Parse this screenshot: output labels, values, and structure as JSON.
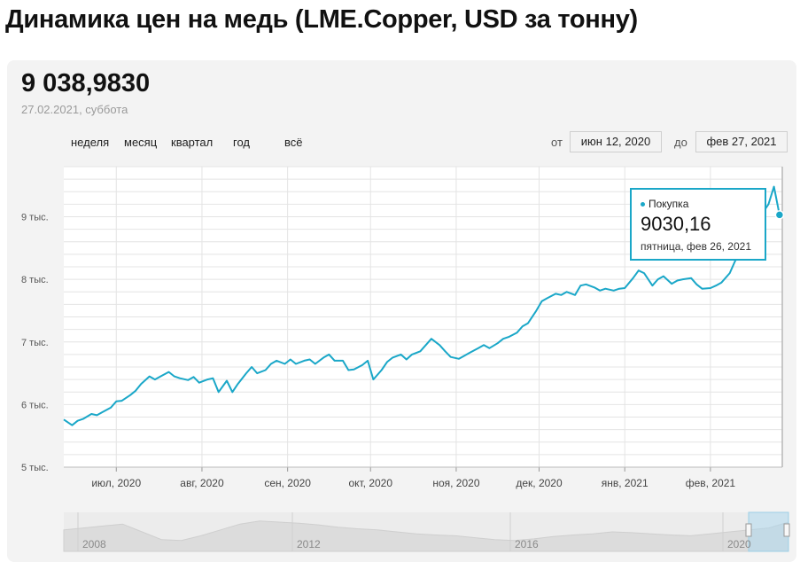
{
  "page": {
    "title": "Динамика цен на медь (LME.Copper, USD за тонну)"
  },
  "summary": {
    "price": "9 038,9830",
    "date": "27.02.2021, суббота"
  },
  "periods": [
    "неделя",
    "месяц",
    "квартал",
    "год",
    "всё"
  ],
  "range": {
    "from_label": "от",
    "from_value": "июн 12, 2020",
    "to_label": "до",
    "to_value": "фев 27, 2021"
  },
  "tooltip": {
    "series_name": "Покупка",
    "value": "9030,16",
    "date": "пятница, фев 26, 2021"
  },
  "colors": {
    "line": "#1aa7c8",
    "card_background": "#f3f3f3",
    "grid": "#e4e4e4"
  },
  "navigator": {
    "labels": [
      "2008",
      "2012",
      "2016",
      "2020"
    ]
  },
  "chart_data": {
    "type": "line",
    "title": "Динамика цен на медь (LME.Copper, USD за тонну)",
    "xlabel": "",
    "ylabel": "",
    "grid": true,
    "x_range": [
      "2020-06-12",
      "2021-02-27"
    ],
    "ylim": [
      5000,
      9800
    ],
    "y_ticks": [
      {
        "value": 5000,
        "label": "5 тыс."
      },
      {
        "value": 6000,
        "label": "6 тыс."
      },
      {
        "value": 7000,
        "label": "7 тыс."
      },
      {
        "value": 8000,
        "label": "8 тыс."
      },
      {
        "value": 9000,
        "label": "9 тыс."
      }
    ],
    "x_ticks": [
      {
        "date": "2020-07-01",
        "label": "июл, 2020"
      },
      {
        "date": "2020-08-01",
        "label": "авг, 2020"
      },
      {
        "date": "2020-09-01",
        "label": "сен, 2020"
      },
      {
        "date": "2020-10-01",
        "label": "окт, 2020"
      },
      {
        "date": "2020-11-01",
        "label": "ноя, 2020"
      },
      {
        "date": "2020-12-01",
        "label": "дек, 2020"
      },
      {
        "date": "2021-01-01",
        "label": "янв, 2021"
      },
      {
        "date": "2021-02-01",
        "label": "фев, 2021"
      }
    ],
    "series": [
      {
        "name": "Покупка",
        "points": [
          [
            "2020-06-12",
            5760
          ],
          [
            "2020-06-15",
            5670
          ],
          [
            "2020-06-17",
            5740
          ],
          [
            "2020-06-19",
            5770
          ],
          [
            "2020-06-22",
            5850
          ],
          [
            "2020-06-24",
            5830
          ],
          [
            "2020-06-26",
            5880
          ],
          [
            "2020-06-29",
            5950
          ],
          [
            "2020-07-01",
            6050
          ],
          [
            "2020-07-03",
            6060
          ],
          [
            "2020-07-06",
            6150
          ],
          [
            "2020-07-08",
            6220
          ],
          [
            "2020-07-10",
            6330
          ],
          [
            "2020-07-13",
            6450
          ],
          [
            "2020-07-15",
            6400
          ],
          [
            "2020-07-17",
            6450
          ],
          [
            "2020-07-20",
            6520
          ],
          [
            "2020-07-22",
            6450
          ],
          [
            "2020-07-24",
            6420
          ],
          [
            "2020-07-27",
            6390
          ],
          [
            "2020-07-29",
            6440
          ],
          [
            "2020-07-31",
            6350
          ],
          [
            "2020-08-03",
            6400
          ],
          [
            "2020-08-05",
            6420
          ],
          [
            "2020-08-07",
            6200
          ],
          [
            "2020-08-10",
            6380
          ],
          [
            "2020-08-12",
            6200
          ],
          [
            "2020-08-14",
            6330
          ],
          [
            "2020-08-17",
            6500
          ],
          [
            "2020-08-19",
            6600
          ],
          [
            "2020-08-21",
            6500
          ],
          [
            "2020-08-24",
            6550
          ],
          [
            "2020-08-26",
            6650
          ],
          [
            "2020-08-28",
            6700
          ],
          [
            "2020-08-31",
            6650
          ],
          [
            "2020-09-02",
            6720
          ],
          [
            "2020-09-04",
            6650
          ],
          [
            "2020-09-07",
            6700
          ],
          [
            "2020-09-09",
            6720
          ],
          [
            "2020-09-11",
            6650
          ],
          [
            "2020-09-14",
            6750
          ],
          [
            "2020-09-16",
            6800
          ],
          [
            "2020-09-18",
            6700
          ],
          [
            "2020-09-21",
            6700
          ],
          [
            "2020-09-23",
            6550
          ],
          [
            "2020-09-25",
            6560
          ],
          [
            "2020-09-28",
            6630
          ],
          [
            "2020-09-30",
            6700
          ],
          [
            "2020-10-02",
            6400
          ],
          [
            "2020-10-05",
            6550
          ],
          [
            "2020-10-07",
            6680
          ],
          [
            "2020-10-09",
            6750
          ],
          [
            "2020-10-12",
            6800
          ],
          [
            "2020-10-14",
            6720
          ],
          [
            "2020-10-16",
            6800
          ],
          [
            "2020-10-19",
            6850
          ],
          [
            "2020-10-21",
            6950
          ],
          [
            "2020-10-23",
            7050
          ],
          [
            "2020-10-26",
            6950
          ],
          [
            "2020-10-28",
            6850
          ],
          [
            "2020-10-30",
            6760
          ],
          [
            "2020-11-02",
            6730
          ],
          [
            "2020-11-04",
            6780
          ],
          [
            "2020-11-06",
            6830
          ],
          [
            "2020-11-09",
            6900
          ],
          [
            "2020-11-11",
            6950
          ],
          [
            "2020-11-13",
            6900
          ],
          [
            "2020-11-16",
            6980
          ],
          [
            "2020-11-18",
            7050
          ],
          [
            "2020-11-20",
            7080
          ],
          [
            "2020-11-23",
            7150
          ],
          [
            "2020-11-25",
            7250
          ],
          [
            "2020-11-27",
            7300
          ],
          [
            "2020-11-30",
            7500
          ],
          [
            "2020-12-02",
            7650
          ],
          [
            "2020-12-04",
            7700
          ],
          [
            "2020-12-07",
            7770
          ],
          [
            "2020-12-09",
            7750
          ],
          [
            "2020-12-11",
            7800
          ],
          [
            "2020-12-14",
            7750
          ],
          [
            "2020-12-16",
            7900
          ],
          [
            "2020-12-18",
            7920
          ],
          [
            "2020-12-21",
            7870
          ],
          [
            "2020-12-23",
            7820
          ],
          [
            "2020-12-25",
            7850
          ],
          [
            "2020-12-28",
            7820
          ],
          [
            "2020-12-30",
            7850
          ],
          [
            "2021-01-01",
            7860
          ],
          [
            "2021-01-04",
            8020
          ],
          [
            "2021-01-06",
            8140
          ],
          [
            "2021-01-08",
            8100
          ],
          [
            "2021-01-11",
            7900
          ],
          [
            "2021-01-13",
            8000
          ],
          [
            "2021-01-15",
            8050
          ],
          [
            "2021-01-18",
            7930
          ],
          [
            "2021-01-20",
            7980
          ],
          [
            "2021-01-22",
            8000
          ],
          [
            "2021-01-25",
            8020
          ],
          [
            "2021-01-27",
            7920
          ],
          [
            "2021-01-29",
            7850
          ],
          [
            "2021-02-01",
            7860
          ],
          [
            "2021-02-03",
            7900
          ],
          [
            "2021-02-05",
            7950
          ],
          [
            "2021-02-08",
            8100
          ],
          [
            "2021-02-10",
            8300
          ],
          [
            "2021-02-12",
            8400
          ],
          [
            "2021-02-15",
            8600
          ],
          [
            "2021-02-17",
            8750
          ],
          [
            "2021-02-19",
            9000
          ],
          [
            "2021-02-22",
            9200
          ],
          [
            "2021-02-24",
            9480
          ],
          [
            "2021-02-26",
            9030
          ]
        ]
      }
    ]
  }
}
